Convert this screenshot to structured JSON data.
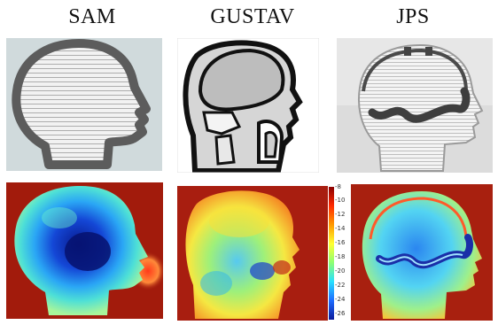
{
  "columns": [
    {
      "label": "SAM"
    },
    {
      "label": "GUSTAV"
    },
    {
      "label": "JPS"
    }
  ],
  "colorbar": {
    "ticks": [
      "-8",
      "-10",
      "-12",
      "-14",
      "-16",
      "-18",
      "-20",
      "-22",
      "-24",
      "-26"
    ]
  },
  "colors": {
    "sam_bg": "#cfd8dc",
    "heat_bg": "#a21b0c",
    "jps_bg": "#e4e4e4"
  }
}
